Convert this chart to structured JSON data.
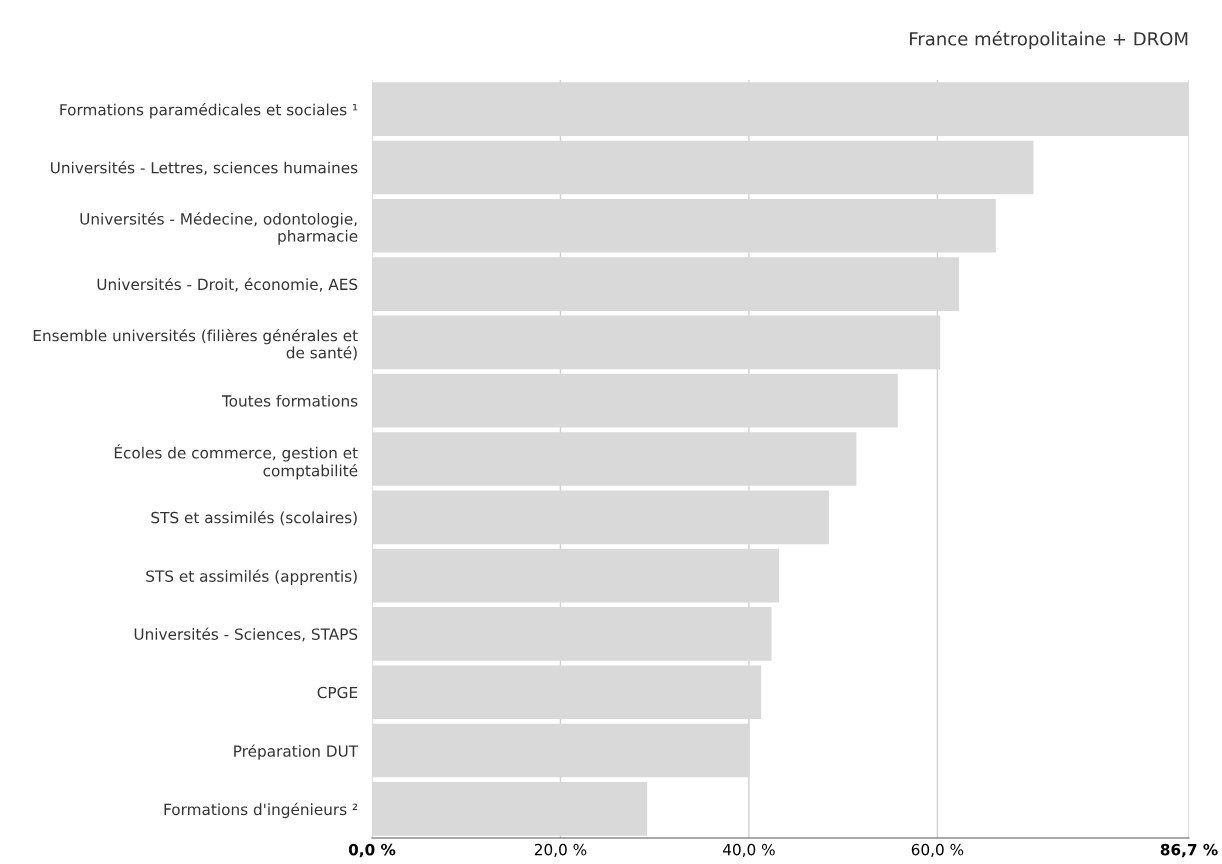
{
  "chart_data": {
    "type": "bar",
    "orientation": "horizontal",
    "subtitle": "France métropolitaine + DROM",
    "categories": [
      "Formations paramédicales et sociales ¹",
      "Universités - Lettres, sciences humaines",
      "Universités - Médecine, odontologie,\npharmacie",
      "Universités - Droit, économie, AES",
      "Ensemble universités (filières générales et\nde santé)",
      "Toutes formations",
      "Écoles de commerce, gestion et\ncomptabilité",
      "STS et assimilés (scolaires)",
      "STS et assimilés (apprentis)",
      "Universités - Sciences, STAPS",
      "CPGE",
      "Préparation DUT",
      "Formations d'ingénieurs ²"
    ],
    "values": [
      86.7,
      70.2,
      66.2,
      62.3,
      60.3,
      55.8,
      51.4,
      48.5,
      43.2,
      42.4,
      41.3,
      40.1,
      29.2
    ],
    "color": "#d9d9d9",
    "xlim": [
      0,
      86.7
    ],
    "xticks": [
      {
        "value": 0,
        "label": "0,0 %"
      },
      {
        "value": 20,
        "label": "20,0 %"
      },
      {
        "value": 40,
        "label": "40,0 %"
      },
      {
        "value": 60,
        "label": "60,0 %"
      },
      {
        "value": 86.7,
        "label": "86,7 %"
      }
    ],
    "grid": "x",
    "legend": false
  }
}
